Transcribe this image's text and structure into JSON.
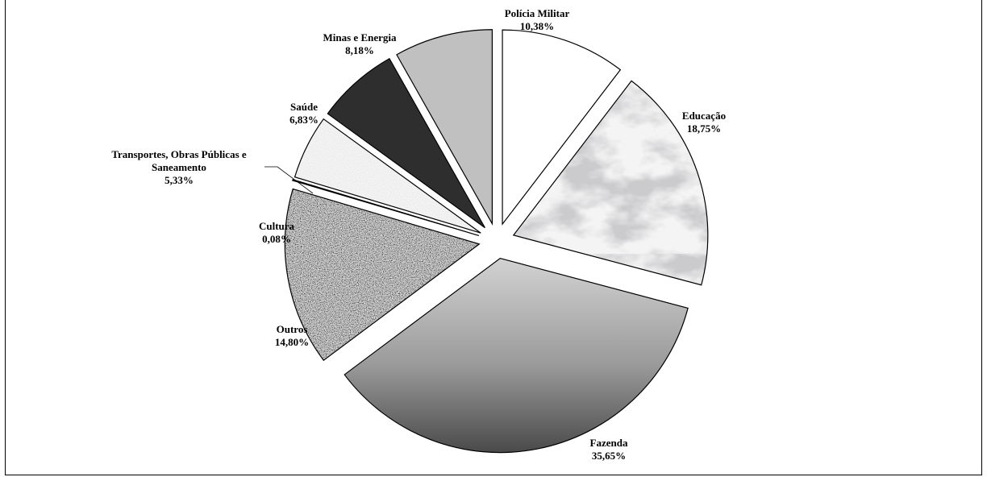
{
  "chart_data": {
    "type": "pie",
    "exploded": true,
    "start": "12 o'clock, clockwise",
    "slices": [
      {
        "label": "Polícia Militar",
        "label_lines": [
          "Polícia Militar"
        ],
        "value": 10.38,
        "value_text": "10,38%",
        "fill": "solid-white"
      },
      {
        "label": "Educação",
        "label_lines": [
          "Educação"
        ],
        "value": 18.75,
        "value_text": "18,75%",
        "fill": "marble"
      },
      {
        "label": "Fazenda",
        "label_lines": [
          "Fazenda"
        ],
        "value": 35.65,
        "value_text": "35,65%",
        "fill": "gray-gradient"
      },
      {
        "label": "Outros",
        "label_lines": [
          "Outros"
        ],
        "value": 14.8,
        "value_text": "14,80%",
        "fill": "granite"
      },
      {
        "label": "Cultura",
        "label_lines": [
          "Cultura"
        ],
        "value": 0.08,
        "value_text": "0,08%",
        "fill": "dark-red"
      },
      {
        "label": "Transportes, Obras Públicas e Saneamento",
        "label_lines": [
          "Transportes, Obras Públicas e",
          "Saneamento"
        ],
        "value": 5.33,
        "value_text": "5,33%",
        "fill": "sand"
      },
      {
        "label": "Saúde",
        "label_lines": [
          "Saúde"
        ],
        "value": 6.83,
        "value_text": "6,83%",
        "fill": "solid-dark"
      },
      {
        "label": "Minas e Energia",
        "label_lines": [
          "Minas e Energia"
        ],
        "value": 8.18,
        "value_text": "8,18%",
        "fill": "solid-gray"
      }
    ],
    "colors": {
      "solid-white": "#ffffff",
      "solid-dark": "#2e2e2e",
      "solid-gray": "#c0c0c0",
      "dark-red": "#7a2333"
    }
  }
}
